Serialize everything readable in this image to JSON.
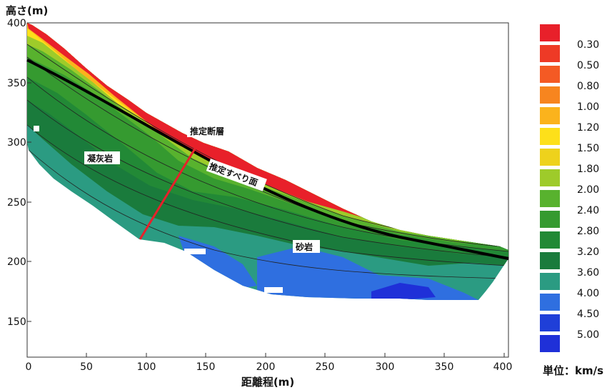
{
  "figure": {
    "y_axis_title": "高さ(m)",
    "x_axis_title": "距離程(m)",
    "y_ticks": [
      "400",
      "350",
      "300",
      "250",
      "200",
      "150"
    ],
    "x_ticks": [
      "0",
      "50",
      "100",
      "150",
      "200",
      "250",
      "300",
      "350",
      "400"
    ],
    "annotations": {
      "fault": "推定断層",
      "slip_surface": "推定すべり面",
      "tuff": "凝灰岩",
      "sandstone": "砂岩"
    }
  },
  "legend": {
    "unit": "単位：km/s",
    "values": [
      "0.30",
      "0.50",
      "0.80",
      "1.00",
      "1.20",
      "1.50",
      "1.80",
      "2.00",
      "2.40",
      "2.80",
      "3.20",
      "3.60",
      "4.00",
      "4.50",
      "5.00"
    ],
    "colors": [
      "#e8202a",
      "#ee3a26",
      "#f45a24",
      "#f7851f",
      "#fbb31c",
      "#fde01a",
      "#eed21c",
      "#9ecb2a",
      "#58b22e",
      "#359a30",
      "#228936",
      "#1a7b3c",
      "#2b9b82",
      "#2f6fe0",
      "#1f3fd8",
      "#1f30d8"
    ]
  }
}
